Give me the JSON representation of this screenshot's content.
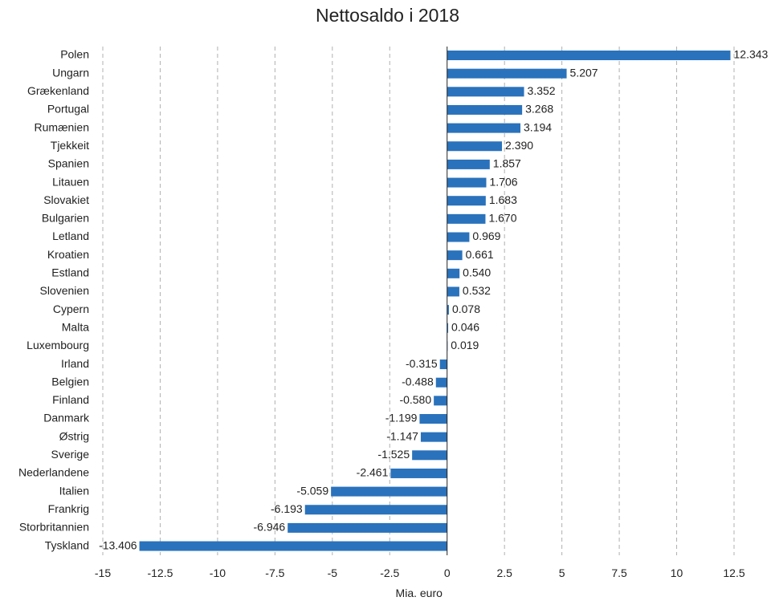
{
  "chart_data": {
    "type": "bar",
    "orientation": "horizontal",
    "title": "Nettosaldo i 2018",
    "xlabel": "Mia. euro",
    "ylabel": "",
    "xlim": [
      -15,
      12.5
    ],
    "xticks": [
      -15,
      -12.5,
      -10,
      -7.5,
      -5,
      -2.5,
      0,
      2.5,
      5,
      7.5,
      10,
      12.5
    ],
    "xtick_labels": [
      "-15",
      "-12.5",
      "-10",
      "-7.5",
      "-5",
      "-2.5",
      "0",
      "2.5",
      "5",
      "7.5",
      "10",
      "12.5"
    ],
    "grid": "vertical dashed",
    "bar_color": "#2a72bc",
    "categories": [
      "Polen",
      "Ungarn",
      "Grækenland",
      "Portugal",
      "Rumænien",
      "Tjekkeit",
      "Spanien",
      "Litauen",
      "Slovakiet",
      "Bulgarien",
      "Letland",
      "Kroatien",
      "Estland",
      "Slovenien",
      "Cypern",
      "Malta",
      "Luxembourg",
      "Irland",
      "Belgien",
      "Finland",
      "Danmark",
      "Østrig",
      "Sverige",
      "Nederlandene",
      "Italien",
      "Frankrig",
      "Storbritannien",
      "Tyskland"
    ],
    "values": [
      12.343,
      5.207,
      3.352,
      3.268,
      3.194,
      2.39,
      1.857,
      1.706,
      1.683,
      1.67,
      0.969,
      0.661,
      0.54,
      0.532,
      0.078,
      0.046,
      0.019,
      -0.315,
      -0.488,
      -0.58,
      -1.199,
      -1.147,
      -1.525,
      -2.461,
      -5.059,
      -6.193,
      -6.946,
      -13.406
    ],
    "value_labels": [
      "12.343",
      "5.207",
      "3.352",
      "3.268",
      "3.194",
      "2.390",
      "1.857",
      "1.706",
      "1.683",
      "1.670",
      "0.969",
      "0.661",
      "0.540",
      "0.532",
      "0.078",
      "0.046",
      "0.019",
      "-0.315",
      "-0.488",
      "-0.580",
      "-1.199",
      "-1.147",
      "-1.525",
      "-2.461",
      "-5.059",
      "-6.193",
      "-6.946",
      "-13.406"
    ]
  }
}
